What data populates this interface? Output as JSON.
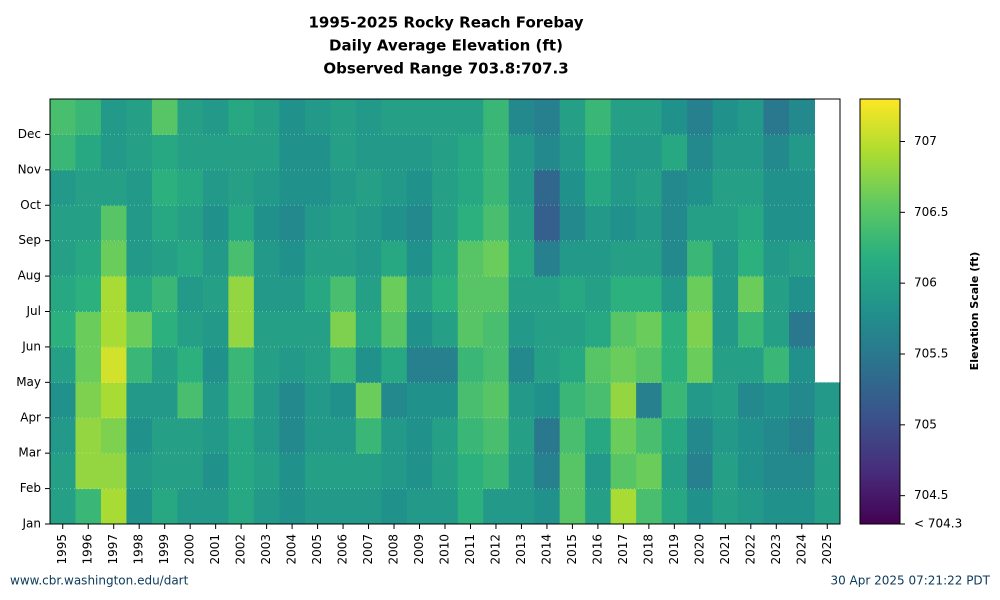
{
  "chart_data": {
    "type": "heatmap",
    "title": [
      "1995-2025 Rocky Reach Forebay",
      "Daily Average Elevation (ft)",
      "Observed Range 703.8:707.3"
    ],
    "x": [
      "1995",
      "1996",
      "1997",
      "1998",
      "1999",
      "2000",
      "2001",
      "2002",
      "2003",
      "2004",
      "2005",
      "2006",
      "2007",
      "2008",
      "2009",
      "2010",
      "2011",
      "2012",
      "2013",
      "2014",
      "2015",
      "2016",
      "2017",
      "2018",
      "2019",
      "2020",
      "2021",
      "2022",
      "2023",
      "2024",
      "2025"
    ],
    "categories": [
      "Jan",
      "Feb",
      "Mar",
      "Apr",
      "May",
      "Jun",
      "Jul",
      "Aug",
      "Sep",
      "Oct",
      "Nov",
      "Dec"
    ],
    "values": [
      [
        706.0,
        706.0,
        705.9,
        705.8,
        706.0,
        706.2,
        706.1,
        706.0,
        706.0,
        705.9,
        706.3,
        706.4
      ],
      [
        706.3,
        706.8,
        706.8,
        706.7,
        706.6,
        706.6,
        706.2,
        706.1,
        706.0,
        706.0,
        706.1,
        706.3
      ],
      [
        706.9,
        706.8,
        706.7,
        706.9,
        707.1,
        706.9,
        706.9,
        706.6,
        706.5,
        706.0,
        705.9,
        705.9
      ],
      [
        705.8,
        705.9,
        705.8,
        705.9,
        706.3,
        706.6,
        706.1,
        705.9,
        705.9,
        705.9,
        706.0,
        706.0
      ],
      [
        706.1,
        706.0,
        706.0,
        705.9,
        706.0,
        706.2,
        706.3,
        706.0,
        706.1,
        706.2,
        706.1,
        706.5
      ],
      [
        705.9,
        706.0,
        706.0,
        706.4,
        706.2,
        706.0,
        705.9,
        706.1,
        706.0,
        706.1,
        706.0,
        706.0
      ],
      [
        705.9,
        705.8,
        705.9,
        705.9,
        705.8,
        705.9,
        706.0,
        705.9,
        705.8,
        705.9,
        706.0,
        705.9
      ],
      [
        706.1,
        706.1,
        706.1,
        706.3,
        706.3,
        706.8,
        706.8,
        706.4,
        706.1,
        706.0,
        706.0,
        706.1
      ],
      [
        705.9,
        706.0,
        705.9,
        705.9,
        706.0,
        706.0,
        705.9,
        705.9,
        705.8,
        705.9,
        706.0,
        706.0
      ],
      [
        705.8,
        705.8,
        705.7,
        705.7,
        705.9,
        706.0,
        705.9,
        705.8,
        705.7,
        705.8,
        705.8,
        705.8
      ],
      [
        705.9,
        706.0,
        705.9,
        705.9,
        706.0,
        706.0,
        706.1,
        706.0,
        705.9,
        705.8,
        705.8,
        705.9
      ],
      [
        705.9,
        706.0,
        705.9,
        705.8,
        706.3,
        706.7,
        706.4,
        706.0,
        706.0,
        705.9,
        706.0,
        706.0
      ],
      [
        705.9,
        706.0,
        706.3,
        706.6,
        705.8,
        706.1,
        706.0,
        705.9,
        705.9,
        706.0,
        705.9,
        705.9
      ],
      [
        705.8,
        705.9,
        705.9,
        705.7,
        706.1,
        706.5,
        706.6,
        706.1,
        705.8,
        705.9,
        705.9,
        706.0
      ],
      [
        705.9,
        705.8,
        705.8,
        705.8,
        705.6,
        705.8,
        706.0,
        705.8,
        705.7,
        705.8,
        705.9,
        706.0
      ],
      [
        705.9,
        706.0,
        706.0,
        705.8,
        705.6,
        706.0,
        706.2,
        706.1,
        706.0,
        706.0,
        706.0,
        706.0
      ],
      [
        706.2,
        706.2,
        706.3,
        706.4,
        706.3,
        706.5,
        706.5,
        706.5,
        706.2,
        706.1,
        706.1,
        706.0
      ],
      [
        705.9,
        706.3,
        706.4,
        706.5,
        706.4,
        706.4,
        706.5,
        706.6,
        706.4,
        706.3,
        706.3,
        706.3
      ],
      [
        705.9,
        705.9,
        706.0,
        705.9,
        705.7,
        705.9,
        706.0,
        706.1,
        706.0,
        705.9,
        705.9,
        705.7
      ],
      [
        705.8,
        705.6,
        705.5,
        705.8,
        706.0,
        706.0,
        706.0,
        705.6,
        705.2,
        705.3,
        705.7,
        705.6
      ],
      [
        706.5,
        706.5,
        706.4,
        706.3,
        706.1,
        706.0,
        706.1,
        705.9,
        705.7,
        705.8,
        705.9,
        706.0
      ],
      [
        706.0,
        705.9,
        706.1,
        706.4,
        706.5,
        706.1,
        706.0,
        705.9,
        705.9,
        706.1,
        706.2,
        706.3
      ],
      [
        706.9,
        706.5,
        706.6,
        706.8,
        706.6,
        706.5,
        706.2,
        706.0,
        705.8,
        705.9,
        705.9,
        706.0
      ],
      [
        706.4,
        706.6,
        706.4,
        705.6,
        706.5,
        706.6,
        706.2,
        706.0,
        705.9,
        706.0,
        705.9,
        706.0
      ],
      [
        706.1,
        706.0,
        706.1,
        706.3,
        706.2,
        706.2,
        705.9,
        705.7,
        705.7,
        705.7,
        706.1,
        705.8
      ],
      [
        705.8,
        705.6,
        705.7,
        705.9,
        706.6,
        706.7,
        706.6,
        706.3,
        706.0,
        705.8,
        705.7,
        705.6
      ],
      [
        706.0,
        706.0,
        705.9,
        706.0,
        706.0,
        705.9,
        705.9,
        705.9,
        706.0,
        706.0,
        705.9,
        705.8
      ],
      [
        705.9,
        705.8,
        705.8,
        705.7,
        706.0,
        706.3,
        706.6,
        706.2,
        706.1,
        706.0,
        705.9,
        705.9
      ],
      [
        705.8,
        705.7,
        705.7,
        705.8,
        706.3,
        706.0,
        706.0,
        705.9,
        705.8,
        705.8,
        705.7,
        705.5
      ],
      [
        705.8,
        705.7,
        705.6,
        705.7,
        705.8,
        705.5,
        705.8,
        706.0,
        705.8,
        705.8,
        705.9,
        705.7
      ],
      [
        706.0,
        706.0,
        706.0,
        705.9,
        null,
        null,
        null,
        null,
        null,
        null,
        null,
        null
      ]
    ],
    "colormap": "viridis",
    "zlim": [
      704.3,
      707.3
    ],
    "zticks": [
      {
        "value": 704.3,
        "label": "< 704.3"
      },
      704.5,
      705,
      705.5,
      706,
      706.5,
      707
    ],
    "zlabel": "Elevation Scale (ft)",
    "grid": true,
    "footer_left": "www.cbr.washington.edu/dart",
    "footer_right": "30 Apr 2025 07:21:22 PDT"
  }
}
